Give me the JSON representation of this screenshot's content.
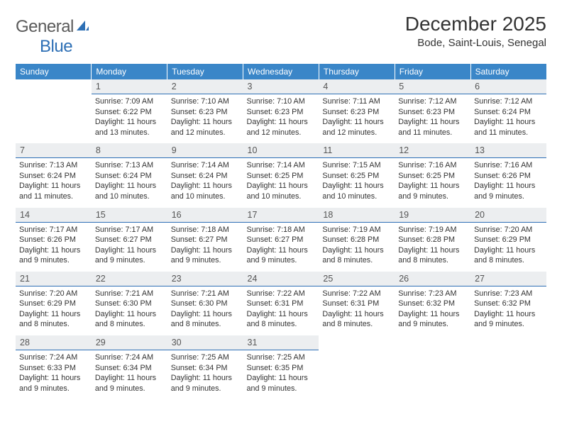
{
  "logo": {
    "general": "General",
    "blue": "Blue"
  },
  "title": "December 2025",
  "location": "Bode, Saint-Louis, Senegal",
  "dow": [
    "Sunday",
    "Monday",
    "Tuesday",
    "Wednesday",
    "Thursday",
    "Friday",
    "Saturday"
  ],
  "colors": {
    "header_bg": "#3a86c8",
    "header_text": "#ffffff",
    "num_bg": "#eceef0",
    "num_border": "#2d6fb5",
    "text": "#333333",
    "logo_blue": "#2d6fb5"
  },
  "weeks": [
    {
      "nums": [
        "",
        "1",
        "2",
        "3",
        "4",
        "5",
        "6"
      ],
      "cells": [
        null,
        {
          "sr": "7:09 AM",
          "ss": "6:22 PM",
          "dl": "11 hours and 13 minutes."
        },
        {
          "sr": "7:10 AM",
          "ss": "6:23 PM",
          "dl": "11 hours and 12 minutes."
        },
        {
          "sr": "7:10 AM",
          "ss": "6:23 PM",
          "dl": "11 hours and 12 minutes."
        },
        {
          "sr": "7:11 AM",
          "ss": "6:23 PM",
          "dl": "11 hours and 12 minutes."
        },
        {
          "sr": "7:12 AM",
          "ss": "6:23 PM",
          "dl": "11 hours and 11 minutes."
        },
        {
          "sr": "7:12 AM",
          "ss": "6:24 PM",
          "dl": "11 hours and 11 minutes."
        }
      ]
    },
    {
      "nums": [
        "7",
        "8",
        "9",
        "10",
        "11",
        "12",
        "13"
      ],
      "cells": [
        {
          "sr": "7:13 AM",
          "ss": "6:24 PM",
          "dl": "11 hours and 11 minutes."
        },
        {
          "sr": "7:13 AM",
          "ss": "6:24 PM",
          "dl": "11 hours and 10 minutes."
        },
        {
          "sr": "7:14 AM",
          "ss": "6:24 PM",
          "dl": "11 hours and 10 minutes."
        },
        {
          "sr": "7:14 AM",
          "ss": "6:25 PM",
          "dl": "11 hours and 10 minutes."
        },
        {
          "sr": "7:15 AM",
          "ss": "6:25 PM",
          "dl": "11 hours and 10 minutes."
        },
        {
          "sr": "7:16 AM",
          "ss": "6:25 PM",
          "dl": "11 hours and 9 minutes."
        },
        {
          "sr": "7:16 AM",
          "ss": "6:26 PM",
          "dl": "11 hours and 9 minutes."
        }
      ]
    },
    {
      "nums": [
        "14",
        "15",
        "16",
        "17",
        "18",
        "19",
        "20"
      ],
      "cells": [
        {
          "sr": "7:17 AM",
          "ss": "6:26 PM",
          "dl": "11 hours and 9 minutes."
        },
        {
          "sr": "7:17 AM",
          "ss": "6:27 PM",
          "dl": "11 hours and 9 minutes."
        },
        {
          "sr": "7:18 AM",
          "ss": "6:27 PM",
          "dl": "11 hours and 9 minutes."
        },
        {
          "sr": "7:18 AM",
          "ss": "6:27 PM",
          "dl": "11 hours and 9 minutes."
        },
        {
          "sr": "7:19 AM",
          "ss": "6:28 PM",
          "dl": "11 hours and 8 minutes."
        },
        {
          "sr": "7:19 AM",
          "ss": "6:28 PM",
          "dl": "11 hours and 8 minutes."
        },
        {
          "sr": "7:20 AM",
          "ss": "6:29 PM",
          "dl": "11 hours and 8 minutes."
        }
      ]
    },
    {
      "nums": [
        "21",
        "22",
        "23",
        "24",
        "25",
        "26",
        "27"
      ],
      "cells": [
        {
          "sr": "7:20 AM",
          "ss": "6:29 PM",
          "dl": "11 hours and 8 minutes."
        },
        {
          "sr": "7:21 AM",
          "ss": "6:30 PM",
          "dl": "11 hours and 8 minutes."
        },
        {
          "sr": "7:21 AM",
          "ss": "6:30 PM",
          "dl": "11 hours and 8 minutes."
        },
        {
          "sr": "7:22 AM",
          "ss": "6:31 PM",
          "dl": "11 hours and 8 minutes."
        },
        {
          "sr": "7:22 AM",
          "ss": "6:31 PM",
          "dl": "11 hours and 8 minutes."
        },
        {
          "sr": "7:23 AM",
          "ss": "6:32 PM",
          "dl": "11 hours and 9 minutes."
        },
        {
          "sr": "7:23 AM",
          "ss": "6:32 PM",
          "dl": "11 hours and 9 minutes."
        }
      ]
    },
    {
      "nums": [
        "28",
        "29",
        "30",
        "31",
        "",
        "",
        ""
      ],
      "cells": [
        {
          "sr": "7:24 AM",
          "ss": "6:33 PM",
          "dl": "11 hours and 9 minutes."
        },
        {
          "sr": "7:24 AM",
          "ss": "6:34 PM",
          "dl": "11 hours and 9 minutes."
        },
        {
          "sr": "7:25 AM",
          "ss": "6:34 PM",
          "dl": "11 hours and 9 minutes."
        },
        {
          "sr": "7:25 AM",
          "ss": "6:35 PM",
          "dl": "11 hours and 9 minutes."
        },
        null,
        null,
        null
      ]
    }
  ],
  "labels": {
    "sunrise": "Sunrise: ",
    "sunset": "Sunset: ",
    "daylight": "Daylight: "
  }
}
